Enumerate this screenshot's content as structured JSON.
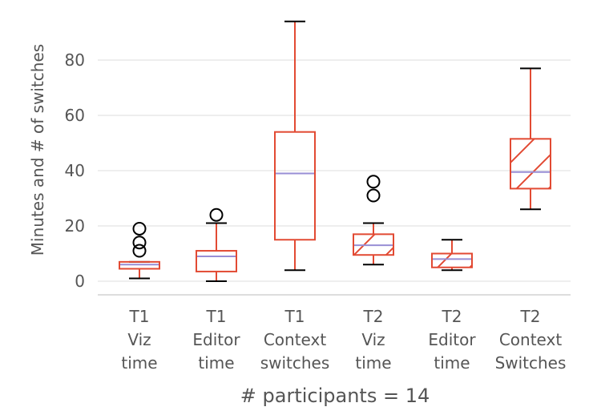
{
  "chart_data": {
    "type": "box",
    "ylabel": "Minutes and # of switches",
    "xlabel": "# participants = 14",
    "ylim": [
      -5,
      97
    ],
    "yticks": [
      0,
      20,
      40,
      60,
      80
    ],
    "grid": true,
    "colors": {
      "box": "#e24a33",
      "median": "#988ed5",
      "whisker": "#e24a33",
      "cap": "#000000",
      "grid": "#eeeeee",
      "axis": "#dddddd",
      "text": "#555555"
    },
    "categories": [
      {
        "lines": [
          "T1",
          "Viz",
          "time"
        ],
        "hatched": false,
        "q1": 4.5,
        "median": 6.0,
        "q3": 7.0,
        "whisker_low": 1,
        "whisker_high": 7,
        "outliers": [
          11,
          14,
          19
        ]
      },
      {
        "lines": [
          "T1",
          "Editor",
          "time"
        ],
        "hatched": false,
        "q1": 3.5,
        "median": 9.0,
        "q3": 11.0,
        "whisker_low": 0,
        "whisker_high": 21,
        "outliers": [
          24
        ]
      },
      {
        "lines": [
          "T1",
          "Context",
          "switches"
        ],
        "hatched": false,
        "q1": 15,
        "median": 39,
        "q3": 54,
        "whisker_low": 4,
        "whisker_high": 94,
        "outliers": []
      },
      {
        "lines": [
          "T2",
          "Viz",
          "time"
        ],
        "hatched": true,
        "q1": 9.5,
        "median": 13.0,
        "q3": 17.0,
        "whisker_low": 6,
        "whisker_high": 21,
        "outliers": [
          31,
          36
        ]
      },
      {
        "lines": [
          "T2",
          "Editor",
          "time"
        ],
        "hatched": true,
        "q1": 5.0,
        "median": 8.0,
        "q3": 10.0,
        "whisker_low": 4,
        "whisker_high": 15,
        "outliers": []
      },
      {
        "lines": [
          "T2",
          "Context",
          "Switches"
        ],
        "hatched": true,
        "q1": 33.5,
        "median": 39.5,
        "q3": 51.5,
        "whisker_low": 26,
        "whisker_high": 77,
        "outliers": []
      }
    ]
  }
}
